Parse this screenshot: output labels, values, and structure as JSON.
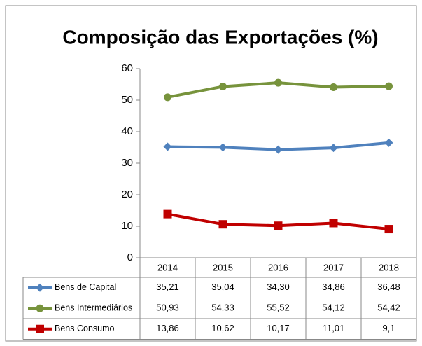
{
  "chart_data": {
    "type": "line",
    "title": "Composição das Exportações (%)",
    "categories": [
      "2014",
      "2015",
      "2016",
      "2017",
      "2018"
    ],
    "series": [
      {
        "name": "Bens de Capital",
        "color": "#4f81bd",
        "marker": "diamond",
        "values": [
          35.21,
          35.04,
          34.3,
          34.86,
          36.48
        ],
        "value_labels": [
          "35,21",
          "35,04",
          "34,30",
          "34,86",
          "36,48"
        ]
      },
      {
        "name": "Bens Intermediários",
        "color": "#77933c",
        "marker": "circle",
        "values": [
          50.93,
          54.33,
          55.52,
          54.12,
          54.42
        ],
        "value_labels": [
          "50,93",
          "54,33",
          "55,52",
          "54,12",
          "54,42"
        ]
      },
      {
        "name": "Bens Consumo",
        "color": "#c00000",
        "marker": "square",
        "values": [
          13.86,
          10.62,
          10.17,
          11.01,
          9.1
        ],
        "value_labels": [
          "13,86",
          "10,62",
          "10,17",
          "11,01",
          "9,1"
        ]
      }
    ],
    "ylim": [
      0,
      60
    ],
    "yticks": [
      0,
      10,
      20,
      30,
      40,
      50,
      60
    ],
    "grid": false
  }
}
